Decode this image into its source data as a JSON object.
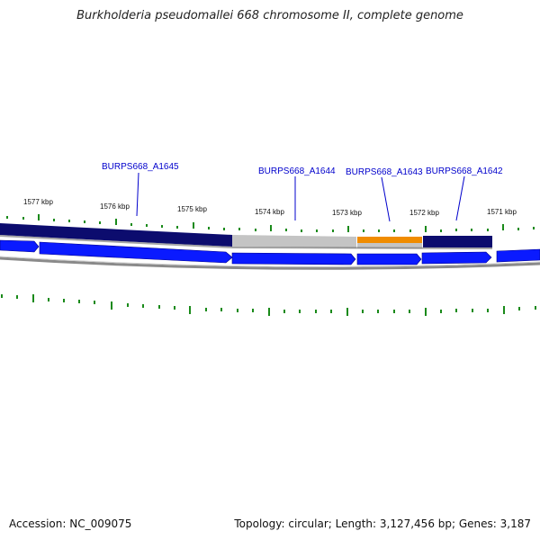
{
  "title": "Burkholderia pseudomallei 668 chromosome II, complete genome",
  "footer": {
    "accession": "Accession: NC_009075",
    "stats": "Topology: circular; Length: 3,127,456 bp; Genes: 3,187"
  },
  "colors": {
    "gene_label": "#0000cc",
    "gene_arrow": "#0a1aff",
    "gene_arrow_edge": "#00008a",
    "band_navy": "#0c0c6e",
    "band_gray": "#c4c4c4",
    "band_orange": "#f08c00",
    "tick_green": "#1a8a1a",
    "axis_gray": "#8a8a8a",
    "label_text": "#111111"
  },
  "gene_labels": [
    {
      "id": "label-a1645",
      "text": "BURPS668_A1645"
    },
    {
      "id": "label-a1644",
      "text": "BURPS668_A1644"
    },
    {
      "id": "label-a1643",
      "text": "BURPS668_A1643"
    },
    {
      "id": "label-a1642",
      "text": "BURPS668_A1642"
    }
  ],
  "kbp_labels": [
    "1577 kbp",
    "1576 kbp",
    "1575 kbp",
    "1574 kbp",
    "1573 kbp",
    "1572 kbp",
    "1571 kbp"
  ]
}
